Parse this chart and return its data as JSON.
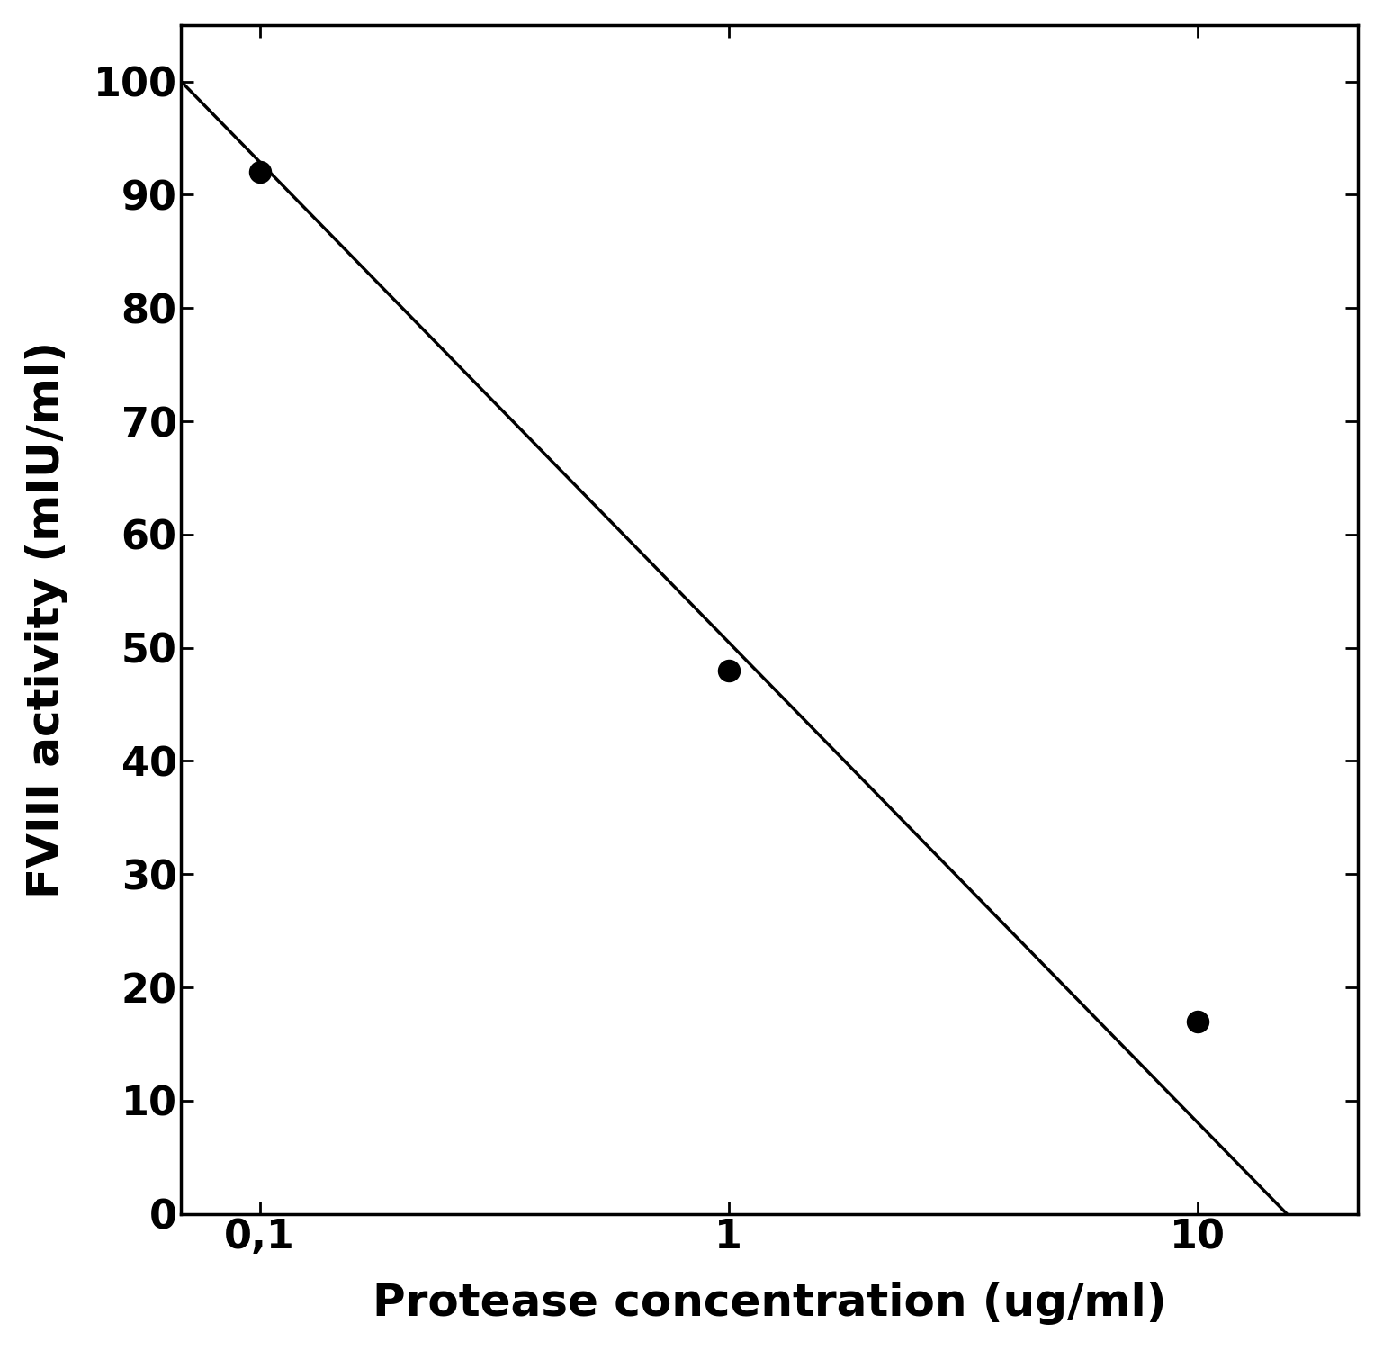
{
  "x_data": [
    0.1,
    1.0,
    10.0
  ],
  "y_data": [
    92,
    48,
    17
  ],
  "line_x": [
    0.068,
    15.5
  ],
  "line_y": [
    100,
    0
  ],
  "xlim": [
    0.068,
    22
  ],
  "ylim": [
    0,
    105
  ],
  "xtick_positions": [
    0.1,
    1.0,
    10.0
  ],
  "xtick_labels": [
    "0,1",
    "1",
    "10"
  ],
  "ytick_positions": [
    0,
    10,
    20,
    30,
    40,
    50,
    60,
    70,
    80,
    90,
    100
  ],
  "ylabel": "FVIII activity (mIU/ml)",
  "xlabel": "Protease concentration (ug/ml)",
  "background_color": "#ffffff",
  "line_color": "#000000",
  "dot_color": "#000000",
  "dot_size": 300,
  "linewidth": 2.5,
  "border_linewidth": 2.5,
  "tick_fontsize": 32,
  "label_fontsize": 36
}
